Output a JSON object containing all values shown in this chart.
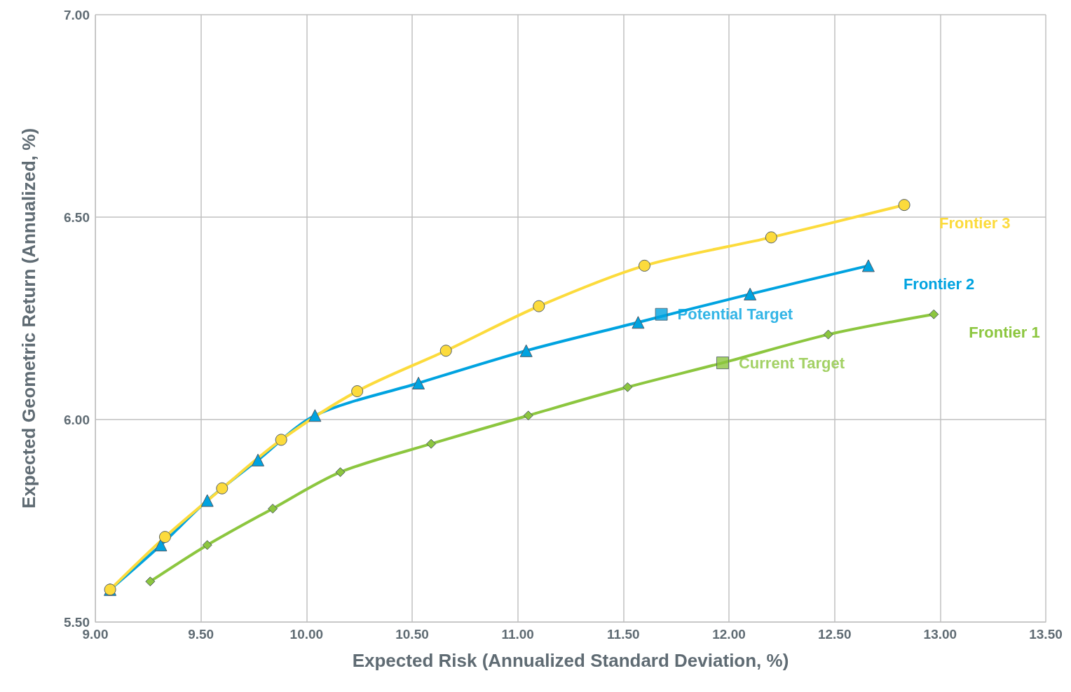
{
  "chart_data": {
    "type": "line",
    "xlabel": "Expected Risk (Annualized Standard Deviation, %)",
    "ylabel": "Expected Geometric Return (Annualized, %)",
    "xlim": [
      9,
      13.5
    ],
    "xticks": [
      {
        "value": 9,
        "label": "9.00"
      },
      {
        "value": 9.5,
        "label": "9.50"
      },
      {
        "value": 10,
        "label": "10.00"
      },
      {
        "value": 10.5,
        "label": "10.50"
      },
      {
        "value": 11,
        "label": "11.00"
      },
      {
        "value": 11.5,
        "label": "11.50"
      },
      {
        "value": 12,
        "label": "12.00"
      },
      {
        "value": 12.5,
        "label": "12.50"
      },
      {
        "value": 13,
        "label": "13.00"
      },
      {
        "value": 13.5,
        "label": "13.50"
      }
    ],
    "ylim": [
      5.5,
      7
    ],
    "yticks": [
      {
        "value": 5.5,
        "label": "5.50"
      },
      {
        "value": 6,
        "label": "6.00"
      },
      {
        "value": 6.5,
        "label": "6.50"
      },
      {
        "value": 7,
        "label": "7.00"
      }
    ],
    "grid": true,
    "line_style": "solid",
    "series": [
      {
        "name": "Frontier 1",
        "color": "#8cc63f",
        "marker": "diamond",
        "x": [
          9.26,
          9.53,
          9.84,
          10.16,
          10.59,
          11.05,
          11.52,
          11.97,
          12.47,
          12.97
        ],
        "values": [
          5.6,
          5.69,
          5.78,
          5.87,
          5.94,
          6.01,
          6.08,
          6.14,
          6.21,
          6.26
        ]
      },
      {
        "name": "Frontier 2",
        "color": "#00a3e0",
        "marker": "triangle",
        "x": [
          9.07,
          9.31,
          9.53,
          9.77,
          10.04,
          10.53,
          11.04,
          11.57,
          12.1,
          12.66
        ],
        "values": [
          5.58,
          5.69,
          5.8,
          5.9,
          6.01,
          6.09,
          6.17,
          6.24,
          6.31,
          6.38
        ]
      },
      {
        "name": "Frontier 3",
        "color": "#fcdb3c",
        "marker": "circle",
        "x": [
          9.07,
          9.33,
          9.6,
          9.88,
          10.24,
          10.66,
          11.1,
          11.6,
          12.2,
          12.83
        ],
        "values": [
          5.58,
          5.71,
          5.83,
          5.95,
          6.07,
          6.17,
          6.28,
          6.38,
          6.45,
          6.53
        ]
      },
      {
        "name": "Potential Target",
        "type": "scatter",
        "color": "#00a3e0",
        "marker": "square",
        "x": [
          11.68
        ],
        "values": [
          6.26
        ]
      },
      {
        "name": "Current Target",
        "type": "scatter",
        "color": "#8cc63f",
        "marker": "square",
        "x": [
          11.97
        ],
        "values": [
          6.14
        ]
      }
    ]
  }
}
